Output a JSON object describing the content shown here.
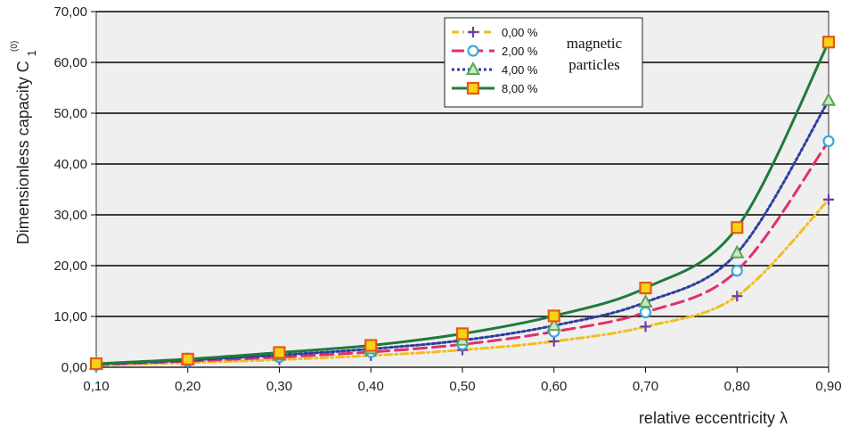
{
  "chart_data": {
    "type": "line",
    "xlabel": "relative eccentricity λ",
    "ylabel_main": "Dimensionless capacity C",
    "ylabel_sub": "1",
    "ylabel_sup": "(0)",
    "xlim": [
      0.1,
      0.9
    ],
    "ylim": [
      0,
      70
    ],
    "x_ticks": [
      0.1,
      0.2,
      0.3,
      0.4,
      0.5,
      0.6,
      0.7,
      0.8,
      0.9
    ],
    "x_tick_labels": [
      "0,10",
      "0,20",
      "0,30",
      "0,40",
      "0,50",
      "0,60",
      "0,70",
      "0,80",
      "0,90"
    ],
    "y_ticks": [
      0,
      10,
      20,
      30,
      40,
      50,
      60,
      70
    ],
    "y_tick_labels": [
      "0,00",
      "10,00",
      "20,00",
      "30,00",
      "40,00",
      "50,00",
      "60,00",
      "70,00"
    ],
    "grid": "horizontal",
    "plot_background": "#efefef",
    "legend_placement": "top-center",
    "legend_note": [
      "magnetic",
      "particles"
    ],
    "x": [
      0.1,
      0.2,
      0.3,
      0.4,
      0.5,
      0.6,
      0.7,
      0.8,
      0.9
    ],
    "series": [
      {
        "name": "0,00 %",
        "values": [
          0.4,
          0.9,
          1.5,
          2.3,
          3.4,
          5.1,
          8.0,
          14.0,
          33.0
        ],
        "color": "#f0be1e",
        "dash": "8,4,2,4",
        "marker": "plus",
        "marker_color": "#6a3db0"
      },
      {
        "name": "2,00 %",
        "values": [
          0.5,
          1.2,
          2.0,
          3.0,
          4.5,
          7.0,
          10.8,
          19.0,
          44.5
        ],
        "color": "#e0306a",
        "dash": "14,7",
        "marker": "circle",
        "marker_color": "#3aa9dc"
      },
      {
        "name": "4,00 %",
        "values": [
          0.6,
          1.4,
          2.4,
          3.6,
          5.3,
          8.2,
          12.8,
          22.5,
          52.5
        ],
        "color": "#2c3e9e",
        "dash": "3,3",
        "marker": "triangle",
        "marker_color": "#5aa55a"
      },
      {
        "name": "8,00 %",
        "values": [
          0.7,
          1.6,
          2.9,
          4.3,
          6.6,
          10.1,
          15.6,
          27.5,
          64.0
        ],
        "color": "#1f7a3b",
        "dash": "",
        "marker": "square",
        "marker_color": "#e85a10"
      }
    ]
  }
}
